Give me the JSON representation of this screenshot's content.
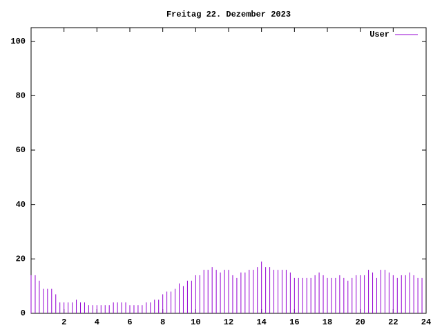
{
  "chart_data": {
    "type": "impulses",
    "title": "Freitag 22. Dezember 2023",
    "x": [
      0,
      0.25,
      0.5,
      0.75,
      1,
      1.25,
      1.5,
      1.75,
      2,
      2.25,
      2.5,
      2.75,
      3,
      3.25,
      3.5,
      3.75,
      4,
      4.25,
      4.5,
      4.75,
      5,
      5.25,
      5.5,
      5.75,
      6,
      6.25,
      6.5,
      6.75,
      7,
      7.25,
      7.5,
      7.75,
      8,
      8.25,
      8.5,
      8.75,
      9,
      9.25,
      9.5,
      9.75,
      10,
      10.25,
      10.5,
      10.75,
      11,
      11.25,
      11.5,
      11.75,
      12,
      12.25,
      12.5,
      12.75,
      13,
      13.25,
      13.5,
      13.75,
      14,
      14.25,
      14.5,
      14.75,
      15,
      15.25,
      15.5,
      15.75,
      16,
      16.25,
      16.5,
      16.75,
      17,
      17.25,
      17.5,
      17.75,
      18,
      18.25,
      18.5,
      18.75,
      19,
      19.25,
      19.5,
      19.75,
      20,
      20.25,
      20.5,
      20.75,
      21,
      21.25,
      21.5,
      21.75,
      22,
      22.25,
      22.5,
      22.75,
      23,
      23.25,
      23.5,
      23.75
    ],
    "series": [
      {
        "name": "User",
        "color": "#9400d3",
        "values": [
          14,
          14,
          12,
          9,
          9,
          9,
          7,
          4,
          4,
          4,
          4,
          5,
          4,
          4,
          3,
          3,
          3,
          3,
          3,
          3,
          4,
          4,
          4,
          4,
          3,
          3,
          3,
          3,
          4,
          4,
          5,
          5,
          7,
          8,
          8,
          9,
          11,
          10,
          12,
          12,
          14,
          14,
          16,
          16,
          17,
          16,
          15,
          16,
          16,
          14,
          13,
          15,
          15,
          16,
          16,
          17,
          19,
          17,
          17,
          16,
          16,
          16,
          16,
          15,
          13,
          13,
          13,
          13,
          13,
          14,
          15,
          14,
          13,
          13,
          13,
          14,
          13,
          12,
          13,
          14,
          14,
          14,
          16,
          15,
          13,
          16,
          16,
          15,
          14,
          13,
          14,
          14,
          15,
          14,
          13,
          13
        ]
      }
    ],
    "xlim": [
      0,
      24
    ],
    "xticks": [
      2,
      4,
      6,
      8,
      10,
      12,
      14,
      16,
      18,
      20,
      22,
      24
    ],
    "ylim": [
      0,
      105
    ],
    "yticks": [
      0,
      20,
      40,
      60,
      80,
      100
    ],
    "legend": "top-right"
  }
}
